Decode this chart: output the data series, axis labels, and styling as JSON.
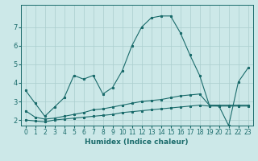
{
  "xlabel": "Humidex (Indice chaleur)",
  "bg_color": "#cce8e8",
  "grid_color": "#aacece",
  "line_color": "#1a6b6b",
  "x_values": [
    0,
    1,
    2,
    3,
    4,
    5,
    6,
    7,
    8,
    9,
    10,
    11,
    12,
    13,
    14,
    15,
    16,
    17,
    18,
    19,
    20,
    21,
    22,
    23
  ],
  "line1": [
    3.6,
    2.9,
    2.2,
    2.7,
    3.2,
    4.4,
    4.2,
    4.4,
    3.4,
    3.75,
    4.65,
    6.0,
    7.0,
    7.5,
    7.6,
    7.6,
    6.7,
    5.5,
    4.4,
    2.8,
    2.75,
    1.7,
    4.05,
    4.8
  ],
  "line2": [
    2.5,
    2.15,
    2.05,
    2.1,
    2.2,
    2.3,
    2.4,
    2.55,
    2.6,
    2.7,
    2.8,
    2.9,
    3.0,
    3.05,
    3.1,
    3.2,
    3.3,
    3.35,
    3.4,
    2.8,
    2.8,
    2.8,
    2.8,
    2.8
  ],
  "line3": [
    2.0,
    1.95,
    1.9,
    2.0,
    2.05,
    2.1,
    2.15,
    2.2,
    2.25,
    2.3,
    2.4,
    2.45,
    2.5,
    2.55,
    2.6,
    2.65,
    2.7,
    2.75,
    2.8,
    2.75,
    2.75,
    2.75,
    2.75,
    2.75
  ],
  "ylim": [
    1.7,
    8.2
  ],
  "yticks": [
    2,
    3,
    4,
    5,
    6,
    7
  ],
  "xticks": [
    0,
    1,
    2,
    3,
    4,
    5,
    6,
    7,
    8,
    9,
    10,
    11,
    12,
    13,
    14,
    15,
    16,
    17,
    18,
    19,
    20,
    21,
    22,
    23
  ],
  "label_fontsize": 6.5,
  "tick_fontsize": 5.5
}
